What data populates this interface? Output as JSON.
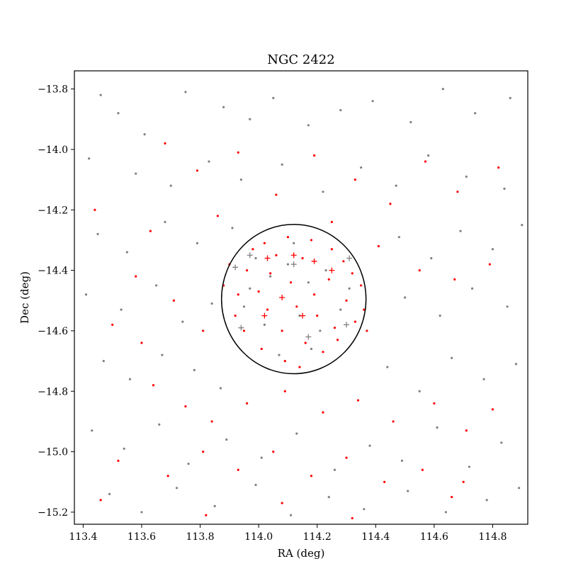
{
  "chart_data": {
    "type": "scatter",
    "title": "NGC 2422",
    "xlabel": "RA (deg)",
    "ylabel": "Dec (deg)",
    "xlim": [
      113.37,
      114.92
    ],
    "ylim": [
      -15.24,
      -13.74
    ],
    "x_inverted": false,
    "xticks": [
      113.4,
      113.6,
      113.8,
      114.0,
      114.2,
      114.4,
      114.6,
      114.8
    ],
    "xtick_labels": [
      "113.4",
      "113.6",
      "113.8",
      "114.0",
      "114.2",
      "114.4",
      "114.6",
      "114.8"
    ],
    "yticks": [
      -13.8,
      -14.0,
      -14.2,
      -14.4,
      -14.6,
      -14.8,
      -15.0,
      -15.2
    ],
    "ytick_labels": [
      "−13.8",
      "−14.0",
      "−14.2",
      "−14.4",
      "−14.6",
      "−14.8",
      "−15.0",
      "−15.2"
    ],
    "grid": false,
    "legend": "none",
    "colors": {
      "field": "#808080",
      "member": "#ff0000",
      "circle": "#000000"
    },
    "circle": {
      "center": [
        114.12,
        -14.495
      ],
      "radius_deg": 0.247
    },
    "series": [
      {
        "marker": "dot",
        "color": "#808080",
        "points": [
          [
            113.46,
            -13.82
          ],
          [
            113.52,
            -13.88
          ],
          [
            113.61,
            -13.95
          ],
          [
            113.75,
            -13.81
          ],
          [
            113.88,
            -13.86
          ],
          [
            113.97,
            -13.9
          ],
          [
            114.05,
            -13.83
          ],
          [
            114.17,
            -13.92
          ],
          [
            114.28,
            -13.87
          ],
          [
            114.39,
            -13.84
          ],
          [
            114.52,
            -13.91
          ],
          [
            114.63,
            -13.8
          ],
          [
            114.74,
            -13.88
          ],
          [
            114.86,
            -13.83
          ],
          [
            113.42,
            -14.03
          ],
          [
            113.58,
            -14.08
          ],
          [
            113.7,
            -14.12
          ],
          [
            113.83,
            -14.04
          ],
          [
            113.94,
            -14.1
          ],
          [
            114.08,
            -14.05
          ],
          [
            114.22,
            -14.14
          ],
          [
            114.35,
            -14.06
          ],
          [
            114.47,
            -14.12
          ],
          [
            114.58,
            -14.02
          ],
          [
            114.71,
            -14.09
          ],
          [
            114.84,
            -14.13
          ],
          [
            113.45,
            -14.28
          ],
          [
            113.55,
            -14.34
          ],
          [
            113.68,
            -14.24
          ],
          [
            113.79,
            -14.31
          ],
          [
            113.91,
            -14.26
          ],
          [
            114.48,
            -14.29
          ],
          [
            114.59,
            -14.36
          ],
          [
            114.69,
            -14.27
          ],
          [
            114.8,
            -14.33
          ],
          [
            114.9,
            -14.25
          ],
          [
            113.41,
            -14.48
          ],
          [
            113.53,
            -14.53
          ],
          [
            113.65,
            -14.45
          ],
          [
            113.74,
            -14.57
          ],
          [
            113.84,
            -14.51
          ],
          [
            114.5,
            -14.49
          ],
          [
            114.62,
            -14.55
          ],
          [
            114.73,
            -14.46
          ],
          [
            114.85,
            -14.52
          ],
          [
            113.47,
            -14.7
          ],
          [
            113.56,
            -14.76
          ],
          [
            113.67,
            -14.68
          ],
          [
            113.78,
            -14.73
          ],
          [
            113.87,
            -14.79
          ],
          [
            114.44,
            -14.72
          ],
          [
            114.55,
            -14.8
          ],
          [
            114.66,
            -14.69
          ],
          [
            114.77,
            -14.76
          ],
          [
            114.88,
            -14.71
          ],
          [
            113.43,
            -14.93
          ],
          [
            113.54,
            -14.99
          ],
          [
            113.66,
            -14.91
          ],
          [
            113.76,
            -15.04
          ],
          [
            113.89,
            -14.96
          ],
          [
            114.01,
            -15.02
          ],
          [
            114.13,
            -14.94
          ],
          [
            114.26,
            -15.06
          ],
          [
            114.38,
            -14.98
          ],
          [
            114.49,
            -15.03
          ],
          [
            114.61,
            -14.92
          ],
          [
            114.72,
            -15.05
          ],
          [
            114.83,
            -14.97
          ],
          [
            113.49,
            -15.14
          ],
          [
            113.6,
            -15.2
          ],
          [
            113.72,
            -15.12
          ],
          [
            113.85,
            -15.18
          ],
          [
            113.99,
            -15.11
          ],
          [
            114.11,
            -15.21
          ],
          [
            114.24,
            -15.15
          ],
          [
            114.36,
            -15.19
          ],
          [
            114.51,
            -15.13
          ],
          [
            114.64,
            -15.2
          ],
          [
            114.78,
            -15.16
          ],
          [
            114.89,
            -15.12
          ],
          [
            113.99,
            -14.36
          ],
          [
            114.04,
            -14.42
          ],
          [
            114.1,
            -14.38
          ],
          [
            114.17,
            -14.44
          ],
          [
            114.23,
            -14.4
          ],
          [
            113.95,
            -14.52
          ],
          [
            114.02,
            -14.58
          ],
          [
            114.14,
            -14.55
          ],
          [
            114.21,
            -14.6
          ],
          [
            114.28,
            -14.53
          ],
          [
            114.07,
            -14.68
          ],
          [
            114.18,
            -14.66
          ],
          [
            113.97,
            -14.46
          ],
          [
            114.31,
            -14.46
          ],
          [
            114.12,
            -14.31
          ]
        ]
      },
      {
        "marker": "dot",
        "color": "#ff0000",
        "points": [
          [
            113.68,
            -13.98
          ],
          [
            113.79,
            -14.07
          ],
          [
            113.93,
            -14.01
          ],
          [
            114.06,
            -14.15
          ],
          [
            114.19,
            -14.02
          ],
          [
            114.33,
            -14.1
          ],
          [
            114.45,
            -14.18
          ],
          [
            114.57,
            -14.04
          ],
          [
            114.68,
            -14.14
          ],
          [
            114.82,
            -14.06
          ],
          [
            113.44,
            -14.2
          ],
          [
            113.63,
            -14.27
          ],
          [
            113.86,
            -14.22
          ],
          [
            114.25,
            -14.24
          ],
          [
            114.41,
            -14.32
          ],
          [
            114.55,
            -14.4
          ],
          [
            114.67,
            -14.43
          ],
          [
            114.79,
            -14.38
          ],
          [
            113.58,
            -14.42
          ],
          [
            113.71,
            -14.5
          ],
          [
            113.81,
            -14.6
          ],
          [
            113.9,
            -14.38
          ],
          [
            113.6,
            -14.64
          ],
          [
            113.5,
            -14.58
          ],
          [
            113.64,
            -14.78
          ],
          [
            113.75,
            -14.85
          ],
          [
            113.84,
            -14.9
          ],
          [
            113.96,
            -14.84
          ],
          [
            114.09,
            -14.8
          ],
          [
            114.22,
            -14.87
          ],
          [
            114.34,
            -14.83
          ],
          [
            114.46,
            -14.9
          ],
          [
            114.6,
            -14.84
          ],
          [
            114.71,
            -14.93
          ],
          [
            114.8,
            -14.86
          ],
          [
            113.52,
            -15.03
          ],
          [
            113.69,
            -15.08
          ],
          [
            113.81,
            -15.0
          ],
          [
            113.93,
            -15.06
          ],
          [
            114.05,
            -15.0
          ],
          [
            114.18,
            -15.08
          ],
          [
            114.3,
            -15.02
          ],
          [
            114.43,
            -15.1
          ],
          [
            114.56,
            -15.06
          ],
          [
            114.7,
            -15.1
          ],
          [
            113.46,
            -15.16
          ],
          [
            113.82,
            -15.21
          ],
          [
            114.08,
            -15.17
          ],
          [
            114.32,
            -15.22
          ],
          [
            114.66,
            -15.15
          ],
          [
            113.96,
            -14.4
          ],
          [
            114.0,
            -14.47
          ],
          [
            114.03,
            -14.53
          ],
          [
            114.06,
            -14.35
          ],
          [
            114.08,
            -14.6
          ],
          [
            114.11,
            -14.44
          ],
          [
            114.13,
            -14.52
          ],
          [
            114.15,
            -14.36
          ],
          [
            114.16,
            -14.64
          ],
          [
            114.19,
            -14.48
          ],
          [
            114.2,
            -14.55
          ],
          [
            114.24,
            -14.43
          ],
          [
            114.26,
            -14.59
          ],
          [
            114.29,
            -14.37
          ],
          [
            114.3,
            -14.5
          ],
          [
            114.33,
            -14.57
          ],
          [
            114.35,
            -14.45
          ],
          [
            114.36,
            -14.53
          ],
          [
            113.93,
            -14.48
          ],
          [
            113.95,
            -14.6
          ],
          [
            114.01,
            -14.66
          ],
          [
            114.09,
            -14.7
          ],
          [
            114.14,
            -14.72
          ],
          [
            114.22,
            -14.67
          ],
          [
            114.27,
            -14.63
          ],
          [
            114.02,
            -14.31
          ],
          [
            114.1,
            -14.29
          ],
          [
            114.18,
            -14.3
          ],
          [
            114.25,
            -14.33
          ],
          [
            114.32,
            -14.41
          ],
          [
            113.88,
            -14.45
          ],
          [
            113.92,
            -14.55
          ],
          [
            114.37,
            -14.6
          ],
          [
            113.98,
            -14.33
          ],
          [
            114.04,
            -14.41
          ]
        ]
      },
      {
        "marker": "plus",
        "color": "#ff0000",
        "points": [
          [
            114.03,
            -14.36
          ],
          [
            114.12,
            -14.35
          ],
          [
            114.19,
            -14.37
          ],
          [
            114.25,
            -14.4
          ],
          [
            114.08,
            -14.49
          ],
          [
            114.15,
            -14.55
          ],
          [
            114.02,
            -14.55
          ]
        ]
      },
      {
        "marker": "plus",
        "color": "#808080",
        "points": [
          [
            113.92,
            -14.39
          ],
          [
            113.97,
            -14.35
          ],
          [
            114.12,
            -14.38
          ],
          [
            114.31,
            -14.36
          ],
          [
            113.94,
            -14.59
          ],
          [
            114.3,
            -14.58
          ],
          [
            114.17,
            -14.62
          ]
        ]
      }
    ]
  }
}
